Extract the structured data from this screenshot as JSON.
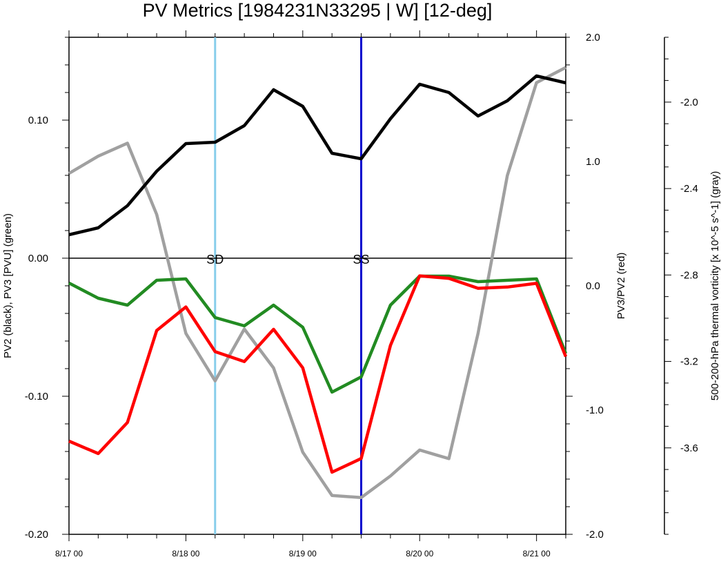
{
  "chart_data": {
    "type": "line",
    "title": "PV Metrics [1984231N33295 | W] [12-deg]",
    "x_tick_labels": [
      "8/17 00",
      "8/18 00",
      "8/19 00",
      "8/20 00",
      "8/21 00"
    ],
    "x_tick_days": [
      0,
      1,
      2,
      3,
      4
    ],
    "xlim_days": [
      0,
      4.25
    ],
    "left_axis": {
      "label": "PV2 (black), PV3 [PVU] (green)",
      "ylim": [
        -0.2,
        0.16
      ],
      "tick_values": [
        -0.2,
        -0.1,
        0.0,
        0.1
      ],
      "tick_labels": [
        "-0.20",
        "-0.10",
        "0.00",
        "0.10"
      ]
    },
    "right_axis": {
      "label": "PV3/PV2 (red)",
      "ylim": [
        -2.0,
        2.0
      ],
      "tick_values": [
        -2.0,
        -1.0,
        0.0,
        1.0,
        2.0
      ],
      "tick_labels": [
        "-2.0",
        "-1.0",
        "0.0",
        "1.0",
        "2.0"
      ]
    },
    "far_right_axis": {
      "label": "500-200-hPa thermal vorticity [x 10^-5 s^-1] (gray)",
      "ylim": [
        -4.0,
        -1.7
      ],
      "tick_values": [
        -2.0,
        -2.4,
        -2.8,
        -3.2,
        -3.6
      ],
      "tick_labels": [
        "-2.0",
        "-2.4",
        "-2.8",
        "-3.2",
        "-3.6"
      ]
    },
    "x_days": [
      0,
      0.25,
      0.5,
      0.75,
      1.0,
      1.25,
      1.5,
      1.75,
      2.0,
      2.25,
      2.5,
      2.75,
      3.0,
      3.25,
      3.5,
      3.75,
      4.0,
      4.25
    ],
    "series": [
      {
        "name": "PV2",
        "color": "#000000",
        "axis": "left",
        "values": [
          0.017,
          0.022,
          0.038,
          0.063,
          0.083,
          0.084,
          0.096,
          0.122,
          0.11,
          0.076,
          0.072,
          0.101,
          0.126,
          0.12,
          0.103,
          0.114,
          0.132,
          0.127
        ]
      },
      {
        "name": "PV3",
        "color": "#228B22",
        "axis": "left",
        "values": [
          -0.018,
          -0.029,
          -0.034,
          -0.016,
          -0.015,
          -0.043,
          -0.049,
          -0.034,
          -0.05,
          -0.097,
          -0.086,
          -0.034,
          -0.013,
          -0.013,
          -0.017,
          -0.016,
          -0.015,
          -0.069
        ]
      },
      {
        "name": "PV3/PV2",
        "color": "#FF0000",
        "axis": "right",
        "values": [
          -1.25,
          -1.35,
          -1.1,
          -0.36,
          -0.17,
          -0.53,
          -0.61,
          -0.35,
          -0.66,
          -1.5,
          -1.39,
          -0.48,
          0.08,
          0.06,
          -0.02,
          -0.01,
          0.02,
          -0.57
        ]
      },
      {
        "name": "thermal vorticity",
        "color": "#A0A0A0",
        "axis": "far_right",
        "values": [
          -2.33,
          -2.25,
          -2.19,
          -2.52,
          -3.07,
          -3.29,
          -3.05,
          -3.23,
          -3.62,
          -3.82,
          -3.83,
          -3.73,
          -3.61,
          -3.65,
          -3.07,
          -2.34,
          -1.91,
          -1.84
        ]
      }
    ],
    "vertical_markers": [
      {
        "label": "SD",
        "x_day": 1.25,
        "color": "#87CEEB"
      },
      {
        "label": "SS",
        "x_day": 2.5,
        "color": "#0000CD"
      }
    ],
    "zero_line": true,
    "grid": false,
    "legend": "none"
  }
}
